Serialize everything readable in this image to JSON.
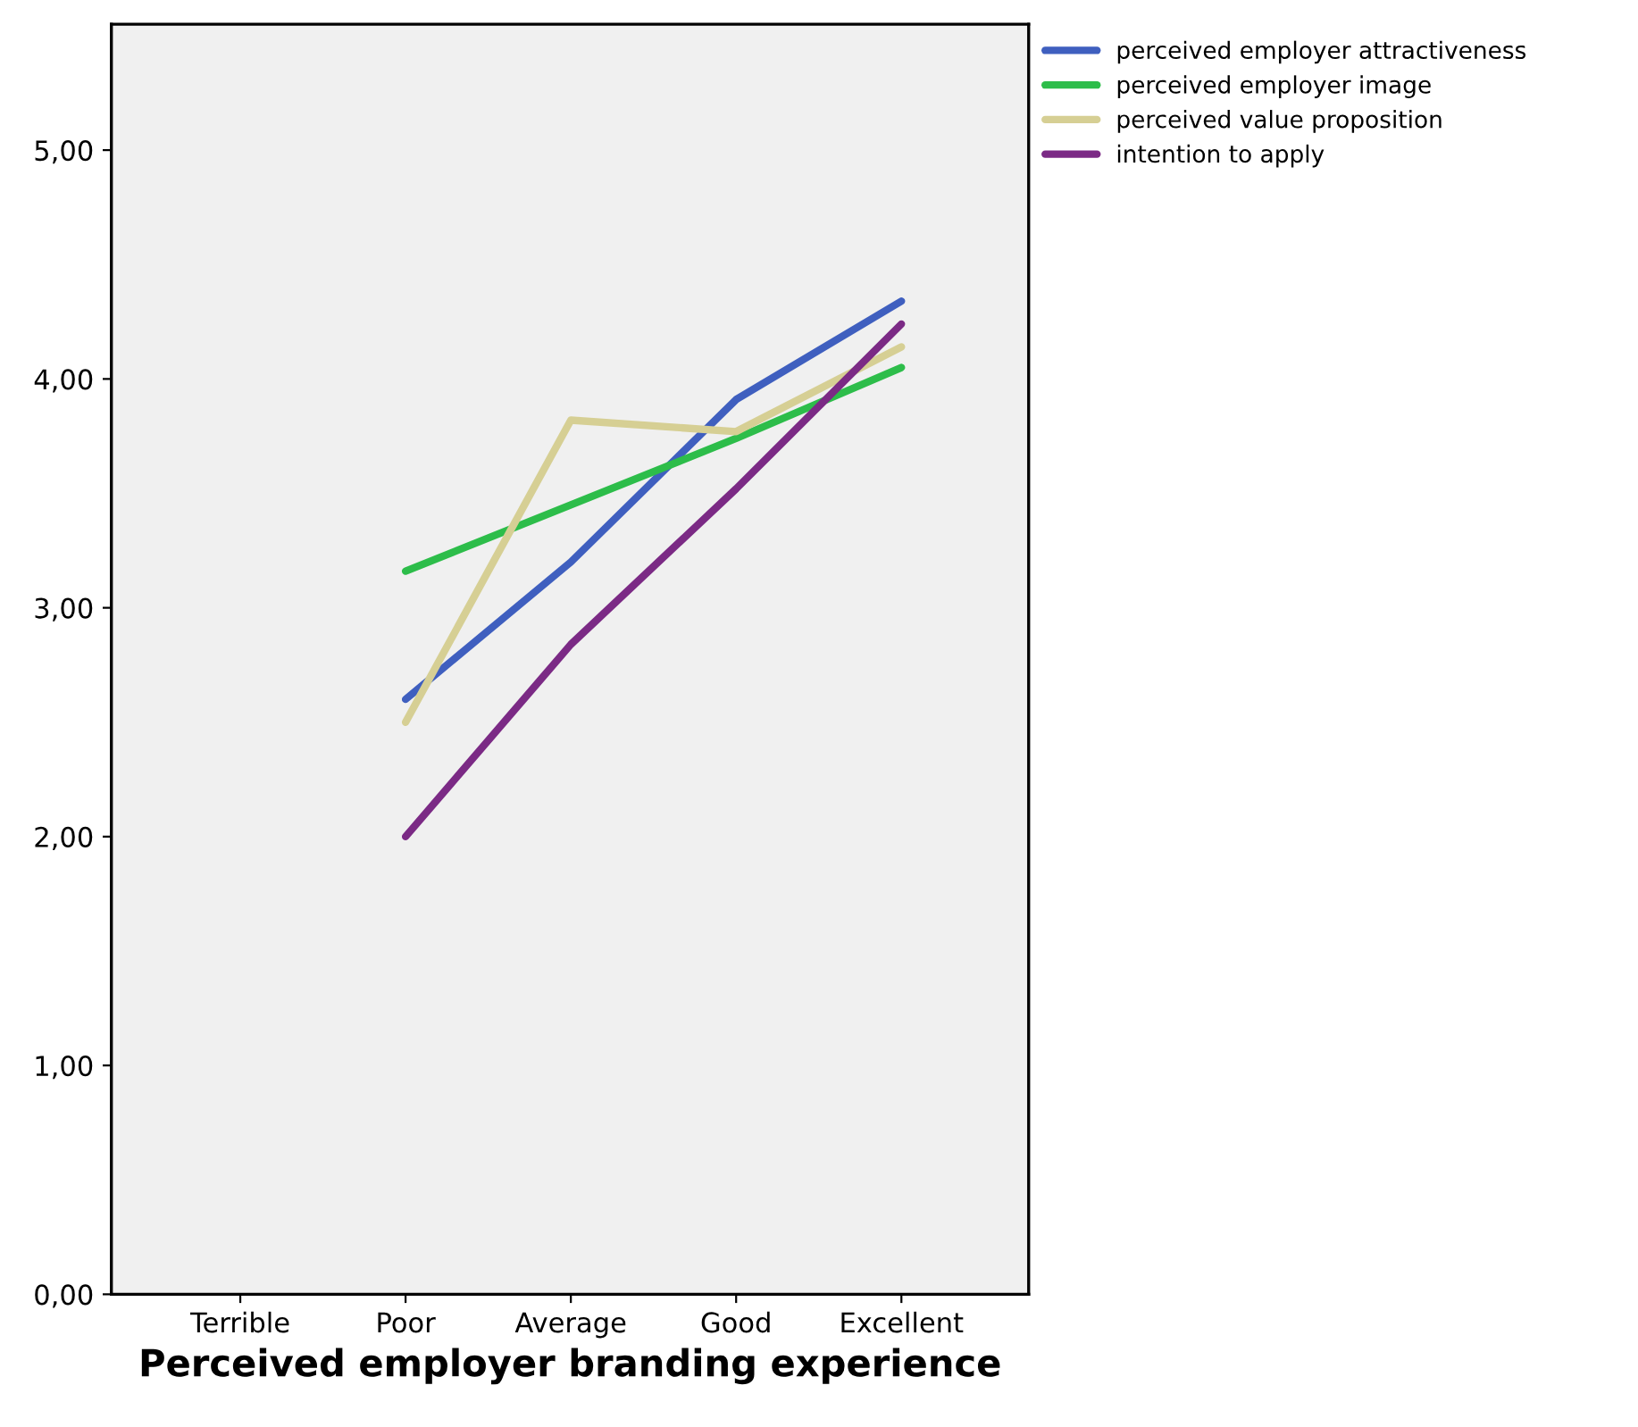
{
  "chart_data": {
    "type": "line",
    "xlabel": "Perceived employer branding experience",
    "categories": [
      "Terrible",
      "Poor",
      "Average",
      "Good",
      "Excellent"
    ],
    "ylim": [
      0,
      5.55
    ],
    "yticks": [
      {
        "value": 0,
        "label": "0,00"
      },
      {
        "value": 1,
        "label": "1,00"
      },
      {
        "value": 2,
        "label": "2,00"
      },
      {
        "value": 3,
        "label": "3,00"
      },
      {
        "value": 4,
        "label": "4,00"
      },
      {
        "value": 5,
        "label": "5,00"
      }
    ],
    "grid": false,
    "legend": "right",
    "marker": "none",
    "line_style": "solid",
    "series": [
      {
        "name": "perceived employer attractiveness",
        "color": "#3f5fbf",
        "values": [
          null,
          2.6,
          3.2,
          3.91,
          4.34
        ]
      },
      {
        "name": "perceived employer image",
        "color": "#2dbd4a",
        "values": [
          null,
          3.16,
          3.45,
          3.74,
          4.05
        ]
      },
      {
        "name": "perceived value proposition",
        "color": "#d6cf94",
        "values": [
          null,
          2.5,
          3.82,
          3.77,
          4.14
        ]
      },
      {
        "name": "intention to apply",
        "color": "#7b2a85",
        "values": [
          null,
          2.0,
          2.84,
          3.52,
          4.24
        ]
      }
    ]
  }
}
